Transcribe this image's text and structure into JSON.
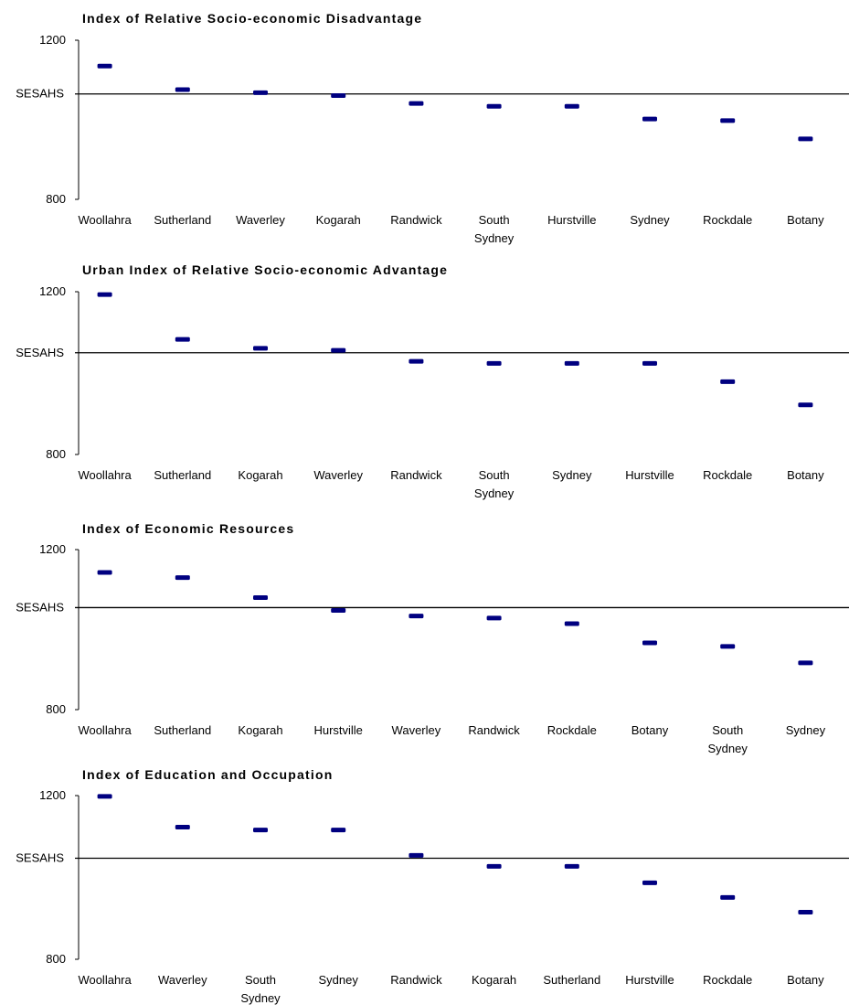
{
  "chart_data": [
    {
      "type": "scatter",
      "title": "Index of Relative Socio-economic Disadvantage",
      "reference_line": {
        "label": "SESAHS",
        "value": 1065
      },
      "ylim": [
        800,
        1200
      ],
      "yticks": [
        "1200",
        "800"
      ],
      "categories": [
        [
          "Woollahra"
        ],
        [
          "Sutherland"
        ],
        [
          "Waverley"
        ],
        [
          "Kogarah"
        ],
        [
          "Randwick"
        ],
        [
          "South",
          "Sydney"
        ],
        [
          "Hurstville"
        ],
        [
          "Sydney"
        ],
        [
          "Rockdale"
        ],
        [
          "Botany"
        ]
      ],
      "values": [
        1135,
        1076,
        1068,
        1061,
        1041,
        1034,
        1034,
        1002,
        998,
        952
      ],
      "marker_color": "#000080",
      "grid": false
    },
    {
      "type": "scatter",
      "title": "Urban Index of Relative Socio-economic Advantage",
      "reference_line": {
        "label": "SESAHS",
        "value": 1050
      },
      "ylim": [
        800,
        1200
      ],
      "yticks": [
        "1200",
        "800"
      ],
      "categories": [
        [
          "Woollahra"
        ],
        [
          "Sutherland"
        ],
        [
          "Kogarah"
        ],
        [
          "Waverley"
        ],
        [
          "Randwick"
        ],
        [
          "South",
          "Sydney"
        ],
        [
          "Sydney"
        ],
        [
          "Hurstville"
        ],
        [
          "Rockdale"
        ],
        [
          "Botany"
        ]
      ],
      "values": [
        1193,
        1083,
        1061,
        1056,
        1029,
        1024,
        1024,
        1024,
        979,
        922
      ],
      "marker_color": "#000080",
      "grid": false
    },
    {
      "type": "scatter",
      "title": "Index of Economic Resources",
      "reference_line": {
        "label": "SESAHS",
        "value": 1055
      },
      "ylim": [
        800,
        1200
      ],
      "yticks": [
        "1200",
        "800"
      ],
      "categories": [
        [
          "Woollahra"
        ],
        [
          "Sutherland"
        ],
        [
          "Kogarah"
        ],
        [
          "Hurstville"
        ],
        [
          "Waverley"
        ],
        [
          "Randwick"
        ],
        [
          "Rockdale"
        ],
        [
          "Botany"
        ],
        [
          "South",
          "Sydney"
        ],
        [
          "Sydney"
        ]
      ],
      "values": [
        1143,
        1130,
        1080,
        1048,
        1034,
        1029,
        1015,
        967,
        958,
        917
      ],
      "marker_color": "#000080",
      "grid": false
    },
    {
      "type": "scatter",
      "title": "Index of Education and Occupation",
      "reference_line": {
        "label": "SESAHS",
        "value": 1047
      },
      "ylim": [
        800,
        1200
      ],
      "yticks": [
        "1200",
        "800"
      ],
      "categories": [
        [
          "Woollahra"
        ],
        [
          "Waverley"
        ],
        [
          "South",
          "Sydney"
        ],
        [
          "Sydney"
        ],
        [
          "Randwick"
        ],
        [
          "Kogarah"
        ],
        [
          "Sutherland"
        ],
        [
          "Hurstville"
        ],
        [
          "Rockdale"
        ],
        [
          "Botany"
        ]
      ],
      "values": [
        1198,
        1123,
        1116,
        1116,
        1054,
        1027,
        1027,
        987,
        951,
        915
      ],
      "marker_color": "#000080",
      "grid": false
    }
  ]
}
